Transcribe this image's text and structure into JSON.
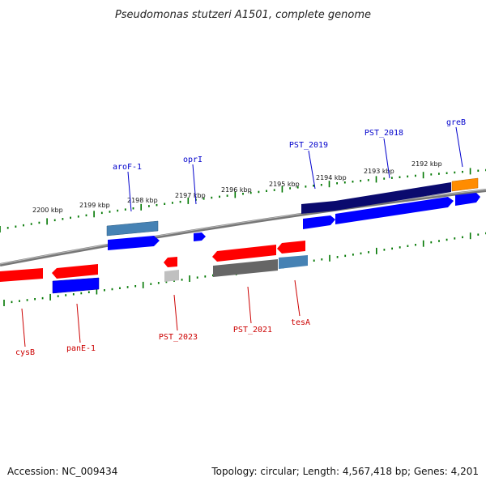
{
  "title": "Pseudomonas stutzeri A1501, complete genome",
  "footer": {
    "accession": "Accession: NC_009434",
    "topology": "Topology: circular; Length: 4,567,418 bp; Genes: 4,201"
  },
  "scale_ticks": [
    {
      "id": "2192",
      "label": "2192 kbp"
    },
    {
      "id": "2193",
      "label": "2193 kbp"
    },
    {
      "id": "2194",
      "label": "2194 kbp"
    },
    {
      "id": "2195",
      "label": "2195 kbp"
    },
    {
      "id": "2196",
      "label": "2196 kbp"
    },
    {
      "id": "2197",
      "label": "2197 kbp"
    },
    {
      "id": "2198",
      "label": "2198 kbp"
    },
    {
      "id": "2199",
      "label": "2199 kbp"
    },
    {
      "id": "2200",
      "label": "2200 kbp"
    }
  ],
  "gene_labels_forward": [
    {
      "id": "aroF-1",
      "label": "aroF-1"
    },
    {
      "id": "oprI",
      "label": "oprI"
    },
    {
      "id": "PST_2019",
      "label": "PST_2019"
    },
    {
      "id": "PST_2018",
      "label": "PST_2018"
    },
    {
      "id": "greB",
      "label": "greB"
    }
  ],
  "gene_labels_reverse": [
    {
      "id": "cysB",
      "label": "cysB"
    },
    {
      "id": "panE-1",
      "label": "panE-1"
    },
    {
      "id": "PST_2023",
      "label": "PST_2023"
    },
    {
      "id": "PST_2021",
      "label": "PST_2021"
    },
    {
      "id": "tesA",
      "label": "tesA"
    }
  ],
  "colors": {
    "forward_label": "#0000cc",
    "reverse_label": "#cc0000",
    "cds_forward": "#0000ff",
    "cds_reverse": "#ff0000",
    "gene_navy": "#0a0a6e",
    "gene_steelblue": "#4682b4",
    "gene_orange": "#ff8c00",
    "gene_grey": "#666666",
    "gene_lightgrey": "#c0c0c0",
    "backbone": "#777777",
    "tick": "#007700"
  }
}
